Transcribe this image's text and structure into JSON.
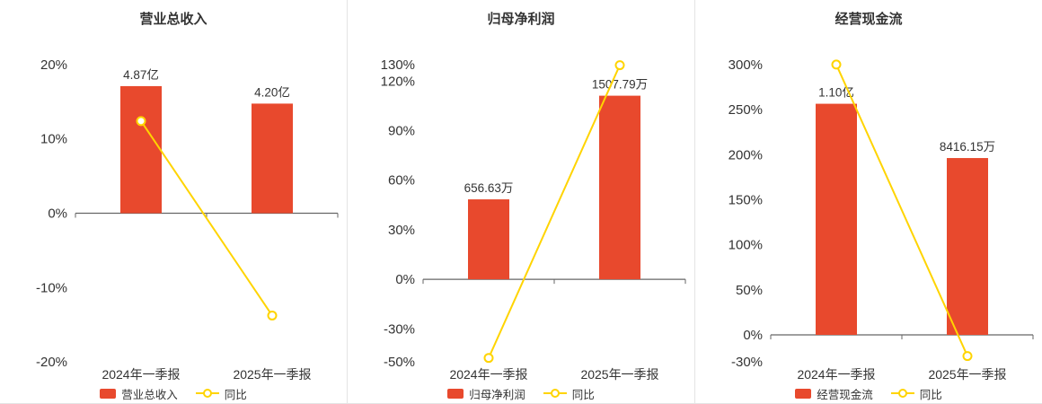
{
  "colors": {
    "bar": "#e8492d",
    "line": "#ffd400",
    "text": "#333333",
    "axis": "#666666",
    "divider": "#e4e4e4",
    "background": "#ffffff"
  },
  "chart_data": [
    {
      "type": "bar",
      "line_overlay": true,
      "title": "营业总收入",
      "categories": [
        "2024年一季报",
        "2025年一季报"
      ],
      "bar_series": {
        "name": "营业总收入",
        "unit": "亿",
        "values": [
          4.87,
          4.2
        ],
        "labels": [
          "4.87亿",
          "4.20亿"
        ]
      },
      "line_series": {
        "name": "同比",
        "unit": "%",
        "values": [
          12.4,
          -13.76
        ]
      },
      "yticks_percent": [
        20,
        10,
        0,
        -10,
        -20
      ],
      "ylim": [
        -20,
        20
      ],
      "legend_position": "bottom",
      "grid": false
    },
    {
      "type": "bar",
      "line_overlay": true,
      "title": "归母净利润",
      "categories": [
        "2024年一季报",
        "2025年一季报"
      ],
      "bar_series": {
        "name": "归母净利润",
        "unit": "万",
        "values": [
          656.63,
          1507.79
        ],
        "labels": [
          "656.63万",
          "1507.79万"
        ]
      },
      "line_series": {
        "name": "同比",
        "unit": "%",
        "values": [
          -47.6,
          129.64
        ]
      },
      "yticks_percent": [
        130,
        120,
        90,
        60,
        30,
        0,
        -30,
        -50
      ],
      "ylim": [
        -50,
        130
      ],
      "legend_position": "bottom",
      "grid": false
    },
    {
      "type": "bar",
      "line_overlay": true,
      "title": "经营现金流",
      "categories": [
        "2024年一季报",
        "2025年一季报"
      ],
      "bar_series": {
        "name": "经营现金流",
        "unit": "万",
        "values": [
          11000,
          8416.15
        ],
        "labels": [
          "1.10亿",
          "8416.15万"
        ]
      },
      "line_series": {
        "name": "同比",
        "unit": "%",
        "values": [
          300,
          -23.49
        ]
      },
      "yticks_percent": [
        300,
        250,
        200,
        150,
        100,
        50,
        0,
        -30
      ],
      "ylim": [
        -30,
        300
      ],
      "legend_position": "bottom",
      "grid": false
    }
  ]
}
